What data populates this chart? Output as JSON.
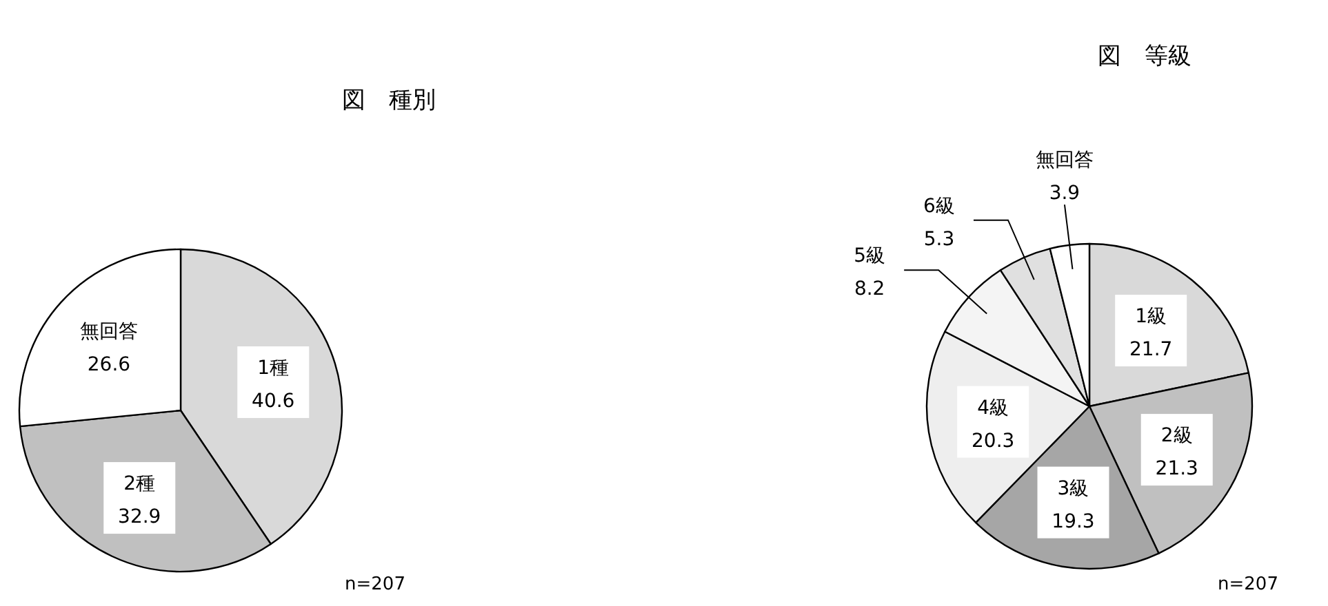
{
  "chart_data": [
    {
      "type": "pie",
      "title": "図　種別",
      "categories": [
        "1種",
        "2種",
        "無回答"
      ],
      "values": [
        40.6,
        32.9,
        26.6
      ],
      "colors": [
        "#d9d9d9",
        "#c0c0c0",
        "#ffffff"
      ],
      "data_labels": true,
      "annotations": [
        "n=207"
      ]
    },
    {
      "type": "pie",
      "title": "図　等級",
      "categories": [
        "1級",
        "2級",
        "3級",
        "4級",
        "5級",
        "6級",
        "無回答"
      ],
      "values": [
        21.7,
        21.3,
        19.3,
        20.3,
        8.2,
        5.3,
        3.9
      ],
      "colors": [
        "#d9d9d9",
        "#c0c0c0",
        "#a6a6a6",
        "#eeeeee",
        "#f4f4f4",
        "#e0e0e0",
        "#ffffff"
      ],
      "data_labels": true,
      "annotations": [
        "n=207"
      ]
    }
  ]
}
